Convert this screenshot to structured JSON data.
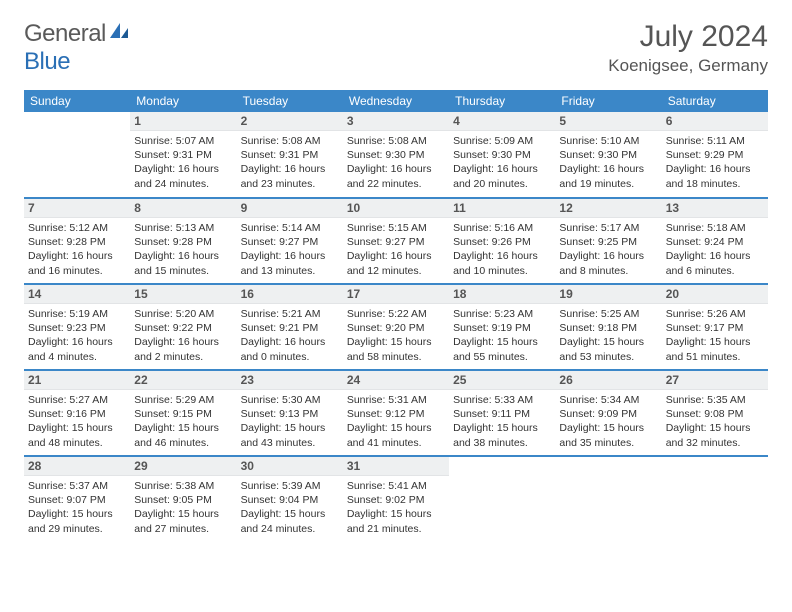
{
  "brand": {
    "name_part1": "General",
    "name_part2": "Blue"
  },
  "title": {
    "month": "July 2024",
    "location": "Koenigsee, Germany"
  },
  "colors": {
    "header_bg": "#3b87c8",
    "header_text": "#ffffff",
    "daynum_bg": "#eef0f1",
    "row_divider": "#3b87c8",
    "brand_gray": "#5a5a5a",
    "brand_blue": "#2a6fb5"
  },
  "weekdays": [
    "Sunday",
    "Monday",
    "Tuesday",
    "Wednesday",
    "Thursday",
    "Friday",
    "Saturday"
  ],
  "weeks": [
    [
      null,
      {
        "n": "1",
        "sunrise": "5:07 AM",
        "sunset": "9:31 PM",
        "daylight": "16 hours and 24 minutes."
      },
      {
        "n": "2",
        "sunrise": "5:08 AM",
        "sunset": "9:31 PM",
        "daylight": "16 hours and 23 minutes."
      },
      {
        "n": "3",
        "sunrise": "5:08 AM",
        "sunset": "9:30 PM",
        "daylight": "16 hours and 22 minutes."
      },
      {
        "n": "4",
        "sunrise": "5:09 AM",
        "sunset": "9:30 PM",
        "daylight": "16 hours and 20 minutes."
      },
      {
        "n": "5",
        "sunrise": "5:10 AM",
        "sunset": "9:30 PM",
        "daylight": "16 hours and 19 minutes."
      },
      {
        "n": "6",
        "sunrise": "5:11 AM",
        "sunset": "9:29 PM",
        "daylight": "16 hours and 18 minutes."
      }
    ],
    [
      {
        "n": "7",
        "sunrise": "5:12 AM",
        "sunset": "9:28 PM",
        "daylight": "16 hours and 16 minutes."
      },
      {
        "n": "8",
        "sunrise": "5:13 AM",
        "sunset": "9:28 PM",
        "daylight": "16 hours and 15 minutes."
      },
      {
        "n": "9",
        "sunrise": "5:14 AM",
        "sunset": "9:27 PM",
        "daylight": "16 hours and 13 minutes."
      },
      {
        "n": "10",
        "sunrise": "5:15 AM",
        "sunset": "9:27 PM",
        "daylight": "16 hours and 12 minutes."
      },
      {
        "n": "11",
        "sunrise": "5:16 AM",
        "sunset": "9:26 PM",
        "daylight": "16 hours and 10 minutes."
      },
      {
        "n": "12",
        "sunrise": "5:17 AM",
        "sunset": "9:25 PM",
        "daylight": "16 hours and 8 minutes."
      },
      {
        "n": "13",
        "sunrise": "5:18 AM",
        "sunset": "9:24 PM",
        "daylight": "16 hours and 6 minutes."
      }
    ],
    [
      {
        "n": "14",
        "sunrise": "5:19 AM",
        "sunset": "9:23 PM",
        "daylight": "16 hours and 4 minutes."
      },
      {
        "n": "15",
        "sunrise": "5:20 AM",
        "sunset": "9:22 PM",
        "daylight": "16 hours and 2 minutes."
      },
      {
        "n": "16",
        "sunrise": "5:21 AM",
        "sunset": "9:21 PM",
        "daylight": "16 hours and 0 minutes."
      },
      {
        "n": "17",
        "sunrise": "5:22 AM",
        "sunset": "9:20 PM",
        "daylight": "15 hours and 58 minutes."
      },
      {
        "n": "18",
        "sunrise": "5:23 AM",
        "sunset": "9:19 PM",
        "daylight": "15 hours and 55 minutes."
      },
      {
        "n": "19",
        "sunrise": "5:25 AM",
        "sunset": "9:18 PM",
        "daylight": "15 hours and 53 minutes."
      },
      {
        "n": "20",
        "sunrise": "5:26 AM",
        "sunset": "9:17 PM",
        "daylight": "15 hours and 51 minutes."
      }
    ],
    [
      {
        "n": "21",
        "sunrise": "5:27 AM",
        "sunset": "9:16 PM",
        "daylight": "15 hours and 48 minutes."
      },
      {
        "n": "22",
        "sunrise": "5:29 AM",
        "sunset": "9:15 PM",
        "daylight": "15 hours and 46 minutes."
      },
      {
        "n": "23",
        "sunrise": "5:30 AM",
        "sunset": "9:13 PM",
        "daylight": "15 hours and 43 minutes."
      },
      {
        "n": "24",
        "sunrise": "5:31 AM",
        "sunset": "9:12 PM",
        "daylight": "15 hours and 41 minutes."
      },
      {
        "n": "25",
        "sunrise": "5:33 AM",
        "sunset": "9:11 PM",
        "daylight": "15 hours and 38 minutes."
      },
      {
        "n": "26",
        "sunrise": "5:34 AM",
        "sunset": "9:09 PM",
        "daylight": "15 hours and 35 minutes."
      },
      {
        "n": "27",
        "sunrise": "5:35 AM",
        "sunset": "9:08 PM",
        "daylight": "15 hours and 32 minutes."
      }
    ],
    [
      {
        "n": "28",
        "sunrise": "5:37 AM",
        "sunset": "9:07 PM",
        "daylight": "15 hours and 29 minutes."
      },
      {
        "n": "29",
        "sunrise": "5:38 AM",
        "sunset": "9:05 PM",
        "daylight": "15 hours and 27 minutes."
      },
      {
        "n": "30",
        "sunrise": "5:39 AM",
        "sunset": "9:04 PM",
        "daylight": "15 hours and 24 minutes."
      },
      {
        "n": "31",
        "sunrise": "5:41 AM",
        "sunset": "9:02 PM",
        "daylight": "15 hours and 21 minutes."
      },
      null,
      null,
      null
    ]
  ],
  "labels": {
    "sunrise": "Sunrise:",
    "sunset": "Sunset:",
    "daylight": "Daylight:"
  }
}
